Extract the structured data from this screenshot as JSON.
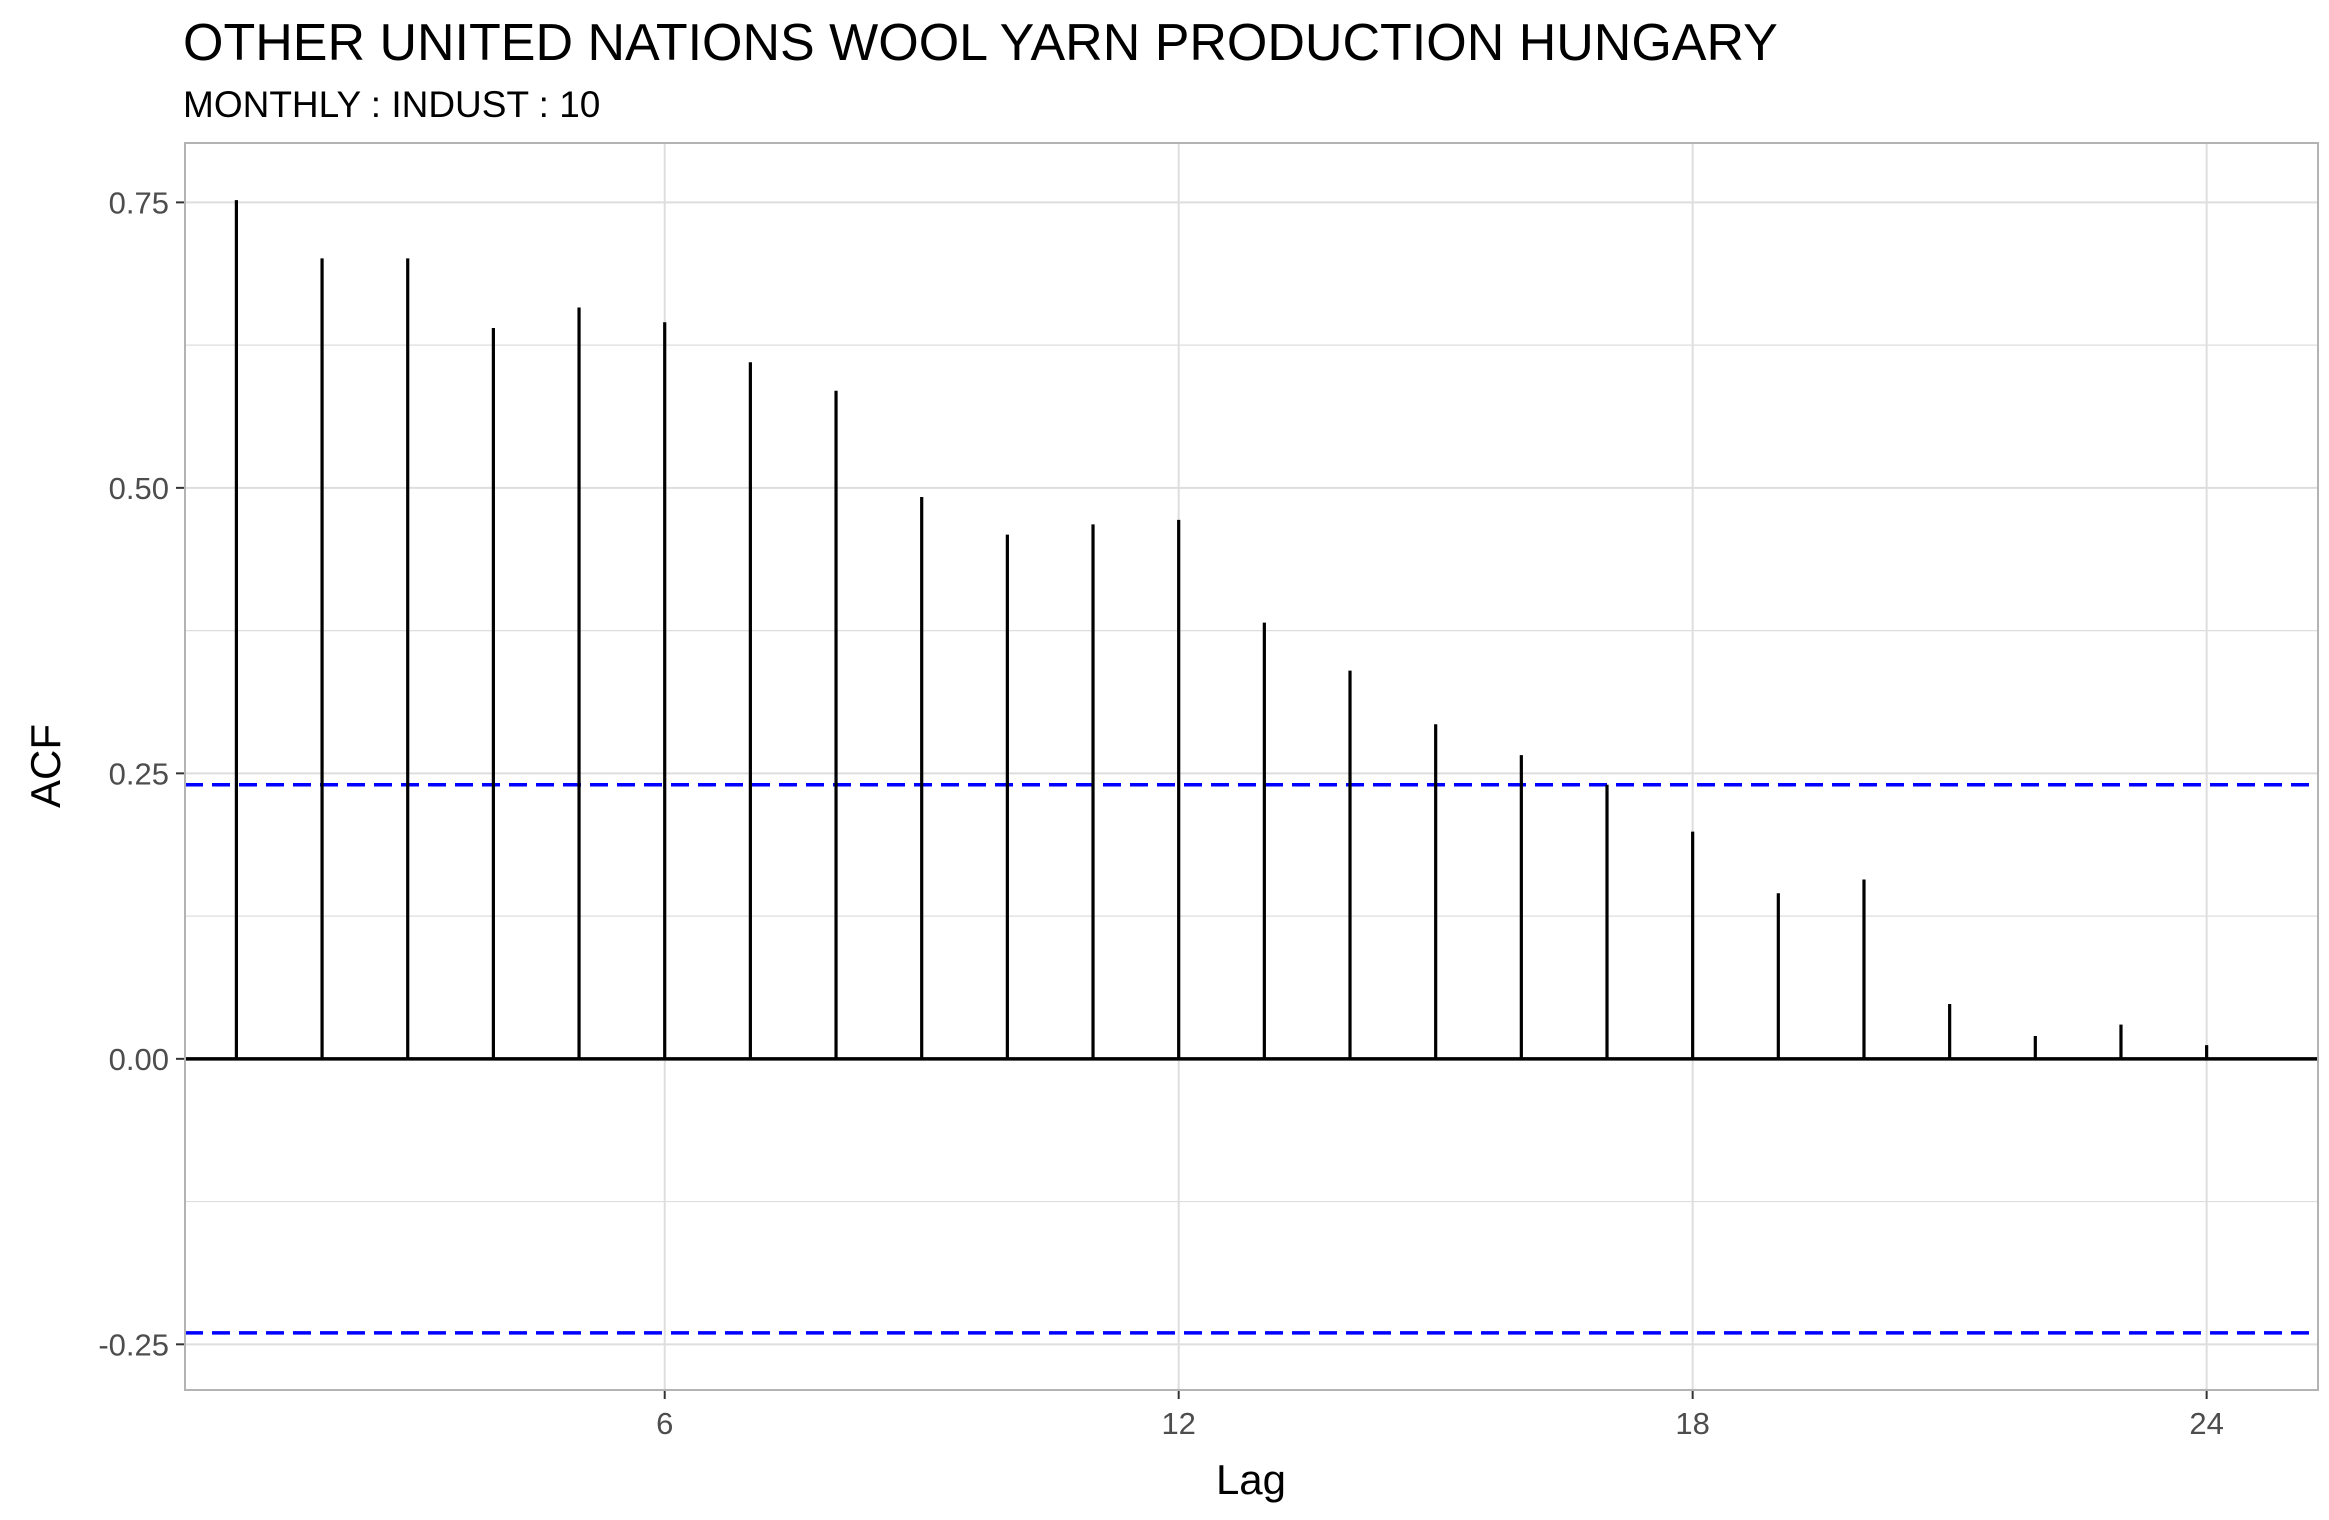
{
  "chart_data": {
    "type": "bar",
    "title": "OTHER UNITED NATIONS WOOL YARN PRODUCTION HUNGARY",
    "subtitle": "MONTHLY : INDUST : 10",
    "xlabel": "Lag",
    "ylabel": "ACF",
    "x": [
      1,
      2,
      3,
      4,
      5,
      6,
      7,
      8,
      9,
      10,
      11,
      12,
      13,
      14,
      15,
      16,
      17,
      18,
      19,
      20,
      21,
      22,
      23,
      24
    ],
    "values": [
      0.752,
      0.701,
      0.701,
      0.64,
      0.658,
      0.645,
      0.61,
      0.585,
      0.492,
      0.459,
      0.468,
      0.472,
      0.382,
      0.34,
      0.293,
      0.266,
      0.24,
      0.199,
      0.145,
      0.157,
      0.048,
      0.02,
      0.03,
      0.012
    ],
    "confidence_bound": 0.24,
    "xlim": [
      0.4,
      25.3
    ],
    "ylim": [
      -0.29,
      0.802
    ],
    "x_ticks": [
      6,
      12,
      18,
      24
    ],
    "x_tick_labels": [
      "6",
      "12",
      "18",
      "24"
    ],
    "y_ticks": [
      -0.25,
      0.0,
      0.25,
      0.5,
      0.75
    ],
    "y_tick_labels": [
      "-0.25",
      "0.00",
      "0.25",
      "0.50",
      "0.75"
    ],
    "y_minor_ticks": [
      -0.125,
      0.125,
      0.375,
      0.625
    ],
    "grid": true,
    "colors": {
      "bars": "#000000",
      "bound_line": "#0000ff",
      "grid": "#dedede",
      "panel_border": "#b3b3b3",
      "zero_line": "#000000"
    }
  }
}
